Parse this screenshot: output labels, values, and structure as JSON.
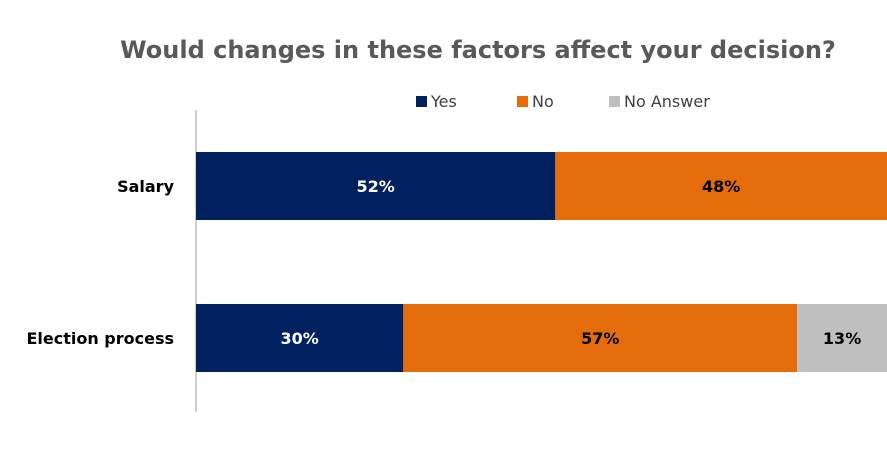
{
  "chart_data": {
    "type": "bar",
    "orientation": "horizontal",
    "stacked": true,
    "title": "Would changes in these factors affect your decision?",
    "categories": [
      "Salary",
      "Election process"
    ],
    "series": [
      {
        "name": "Yes",
        "values": [
          52,
          30
        ],
        "labels": [
          "52%",
          "30%"
        ],
        "color": "#002060",
        "label_color": "#ffffff"
      },
      {
        "name": "No",
        "values": [
          48,
          57
        ],
        "labels": [
          "48%",
          "57%"
        ],
        "color": "#E46C0A",
        "label_color": "#000000"
      },
      {
        "name": "No Answer",
        "values": [
          0,
          13
        ],
        "labels": [
          "",
          "13%"
        ],
        "color": "#BFBFBF",
        "label_color": "#000000"
      }
    ],
    "xlim": [
      0,
      100
    ],
    "grid": false,
    "legend_position": "top"
  }
}
